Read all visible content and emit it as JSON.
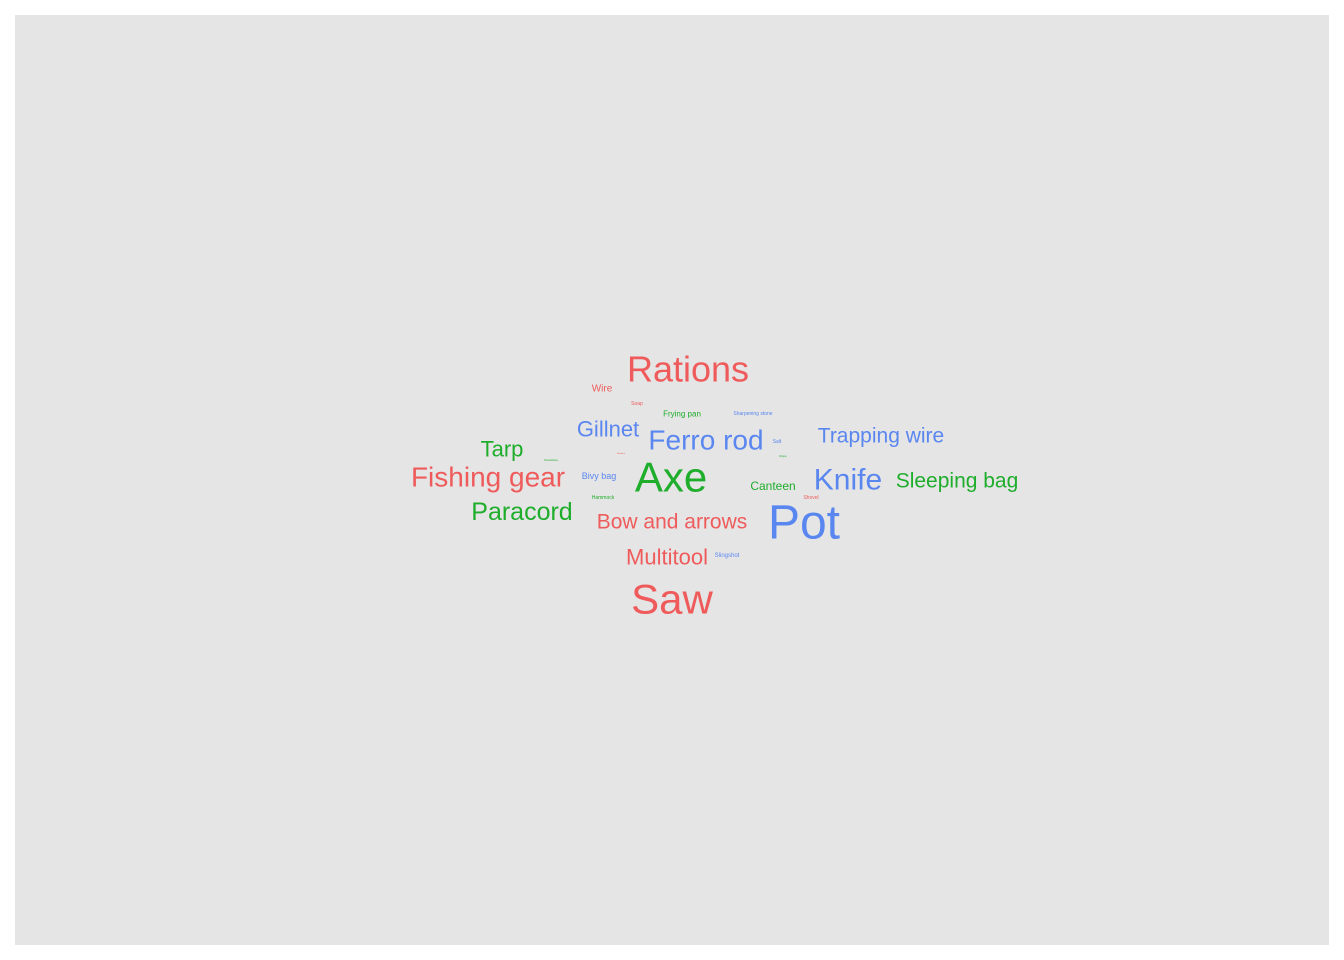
{
  "chart_data": {
    "type": "wordcloud",
    "title": "",
    "colors": {
      "red": "#ef5b5b",
      "blue": "#5a86f0",
      "green": "#1fad2c"
    },
    "words": [
      {
        "text": "Rations",
        "weight": 36,
        "color": "red"
      },
      {
        "text": "Wire",
        "weight": 10,
        "color": "red"
      },
      {
        "text": "Soap",
        "weight": 5,
        "color": "red"
      },
      {
        "text": "Frying pan",
        "weight": 8,
        "color": "green"
      },
      {
        "text": "Sharpening stone",
        "weight": 5,
        "color": "blue"
      },
      {
        "text": "Gillnet",
        "weight": 22,
        "color": "blue"
      },
      {
        "text": "Ferro rod",
        "weight": 28,
        "color": "blue"
      },
      {
        "text": "Trapping wire",
        "weight": 21,
        "color": "blue"
      },
      {
        "text": "Tarp",
        "weight": 22,
        "color": "green"
      },
      {
        "text": "Salt",
        "weight": 5,
        "color": "blue"
      },
      {
        "text": "Snowshoe",
        "weight": 3,
        "color": "green"
      },
      {
        "text": "Bandana",
        "weight": 2,
        "color": "red"
      },
      {
        "text": "Rope",
        "weight": 3,
        "color": "green"
      },
      {
        "text": "Fishing gear",
        "weight": 28,
        "color": "red"
      },
      {
        "text": "Bivy bag",
        "weight": 9,
        "color": "blue"
      },
      {
        "text": "Axe",
        "weight": 42,
        "color": "green"
      },
      {
        "text": "Canteen",
        "weight": 12,
        "color": "green"
      },
      {
        "text": "Knife",
        "weight": 30,
        "color": "blue"
      },
      {
        "text": "Sleeping bag",
        "weight": 21,
        "color": "green"
      },
      {
        "text": "Hammock",
        "weight": 5,
        "color": "green"
      },
      {
        "text": "Shovel",
        "weight": 5,
        "color": "red"
      },
      {
        "text": "Paracord",
        "weight": 25,
        "color": "green"
      },
      {
        "text": "Bow and arrows",
        "weight": 21,
        "color": "red"
      },
      {
        "text": "Pot",
        "weight": 48,
        "color": "blue"
      },
      {
        "text": "Multitool",
        "weight": 22,
        "color": "red"
      },
      {
        "text": "Slingshot",
        "weight": 6,
        "color": "blue"
      },
      {
        "text": "Saw",
        "weight": 42,
        "color": "red"
      }
    ]
  }
}
